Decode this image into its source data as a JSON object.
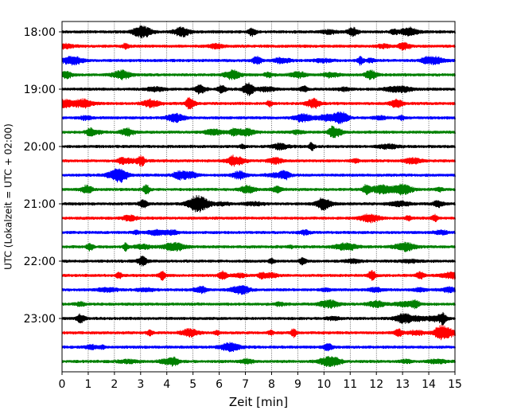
{
  "chart_data": {
    "type": "line",
    "xlabel": "Zeit  [min]",
    "ylabel": "UTC (Lokalzeit = UTC + 02:00)",
    "xlim": [
      0,
      15
    ],
    "x_ticks": [
      0,
      1,
      2,
      3,
      4,
      5,
      6,
      7,
      8,
      9,
      10,
      11,
      12,
      13,
      14,
      15
    ],
    "y_tick_labels": [
      "18:00",
      "19:00",
      "20:00",
      "21:00",
      "22:00",
      "23:00"
    ],
    "grid": "vertical dotted at x ticks",
    "trace_interval_minutes": 15,
    "trace_start_times": [
      "18:00",
      "18:15",
      "18:30",
      "18:45",
      "19:00",
      "19:15",
      "19:30",
      "19:45",
      "20:00",
      "20:15",
      "20:30",
      "20:45",
      "21:00",
      "21:15",
      "21:30",
      "21:45",
      "22:00",
      "22:15",
      "22:30",
      "22:45",
      "23:00",
      "23:15",
      "23:30",
      "23:45"
    ],
    "trace_colors": [
      "#000000",
      "#ff0000",
      "#0000ff",
      "#008000"
    ]
  }
}
